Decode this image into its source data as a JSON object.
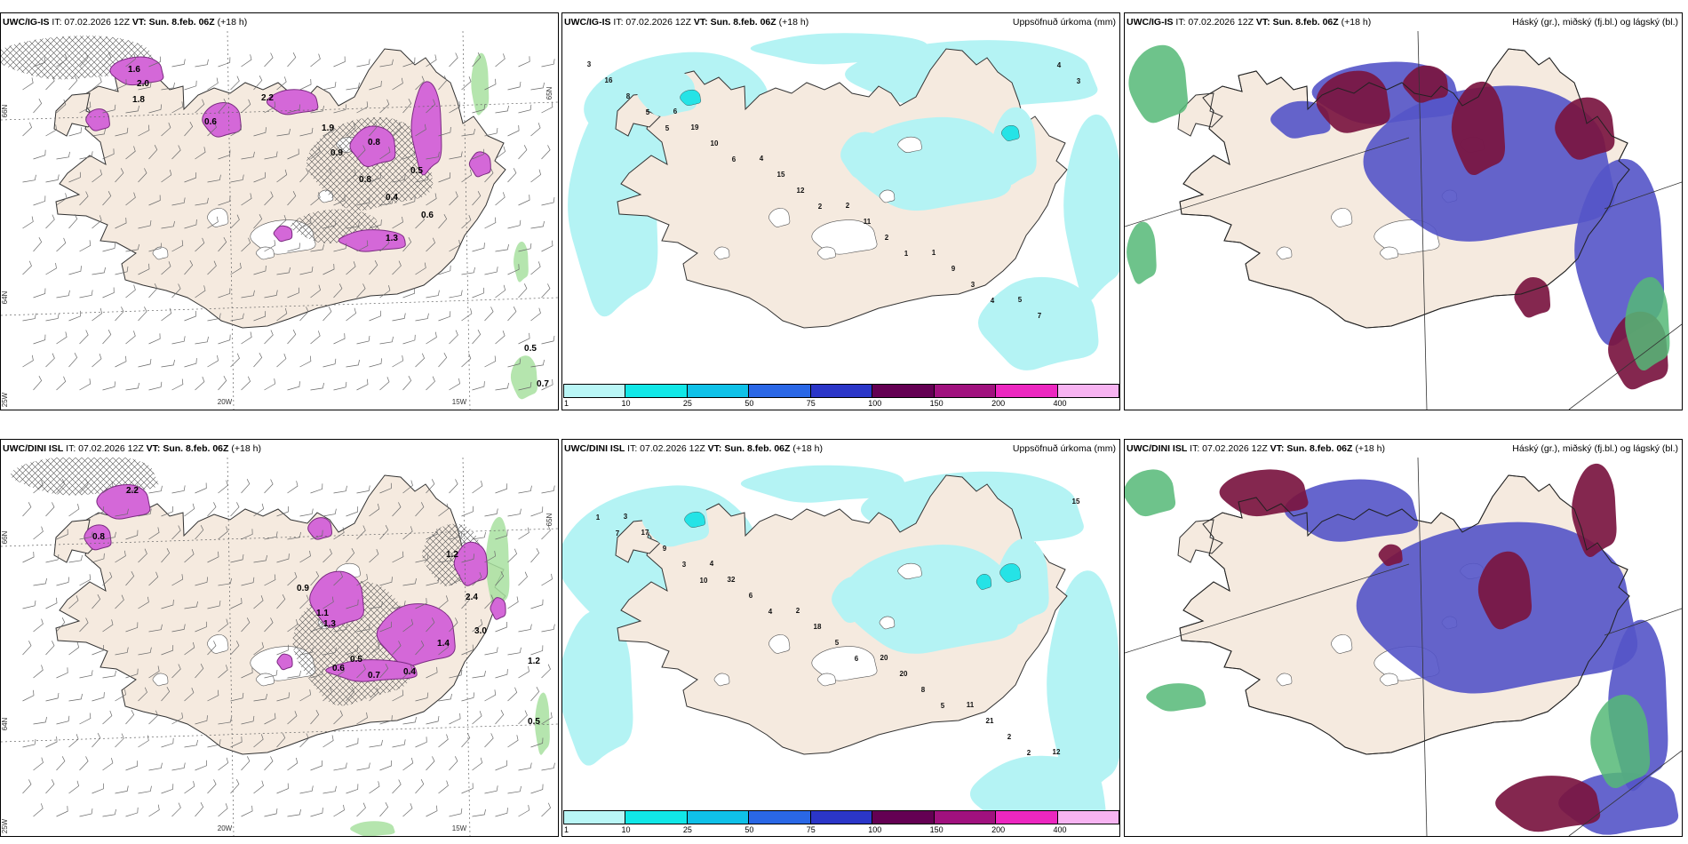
{
  "rows": [
    {
      "model": "UWC/IG-IS",
      "init": "IT: 07.02.2026 12Z",
      "valid": "VT: Sun. 8.feb. 06Z",
      "lead": "(+18 h)",
      "wind_values": [
        "2.0",
        "1.8",
        "2.2",
        "0.6",
        "1.9",
        "0.8",
        "0.5",
        "0.4",
        "0.6",
        "1.3",
        "0.7",
        "0.5",
        "1.6",
        "0.8",
        "0.9"
      ],
      "precip_values": [
        "3",
        "6",
        "4",
        "2",
        "1",
        "5",
        "16",
        "19",
        "15",
        "11",
        "9",
        "7",
        "8",
        "10",
        "12",
        "2",
        "3",
        "4",
        "5",
        "6",
        "2",
        "1",
        "4",
        "3",
        "5"
      ]
    },
    {
      "model": "UWC/DINI ISL",
      "init": "IT: 07.02.2026 12Z",
      "valid": "VT: Sun. 8.feb. 06Z",
      "lead": "(+18 h)",
      "wind_values": [
        "2.2",
        "0.8",
        "1.2",
        "2.4",
        "3.0",
        "1.2",
        "0.5",
        "0.6",
        "0.7",
        "1.3",
        "0.4",
        "1.4",
        "0.5",
        "1.1",
        "0.9"
      ],
      "precip_values": [
        "3",
        "4",
        "2",
        "20",
        "11",
        "12",
        "17",
        "32",
        "18",
        "20",
        "21",
        "15",
        "9",
        "6",
        "5",
        "8",
        "2",
        "1",
        "3",
        "4",
        "6",
        "5",
        "2",
        "7",
        "10"
      ]
    }
  ],
  "panels": {
    "precip_title": "Uppsöfnuð úrkoma (mm)",
    "cloud_title": "Háský (gr.), miðský (fj.bl.) og lágský (bl.)"
  },
  "grid_labels": [
    "66N",
    "64N",
    "65N",
    "20W",
    "15W",
    "25W"
  ],
  "colorbar": {
    "ticks": [
      "1",
      "10",
      "25",
      "50",
      "75",
      "100",
      "150",
      "200",
      "400"
    ],
    "colors": [
      "#b9f6f6",
      "#11e7e7",
      "#0fc1e8",
      "#2a67e6",
      "#2b36c8",
      "#640053",
      "#a0117e",
      "#ec27c0",
      "#f7b3f1"
    ]
  },
  "colors": {
    "land": "#f5eadf",
    "sea": "#ffffff",
    "precip_light": "#b4f3f4",
    "precip_cyan": "#25e3e6",
    "wind_precip": "#d468d8",
    "cloud_high": "#7a1540",
    "cloud_mid": "#5454c8",
    "cloud_low": "#55b877"
  }
}
